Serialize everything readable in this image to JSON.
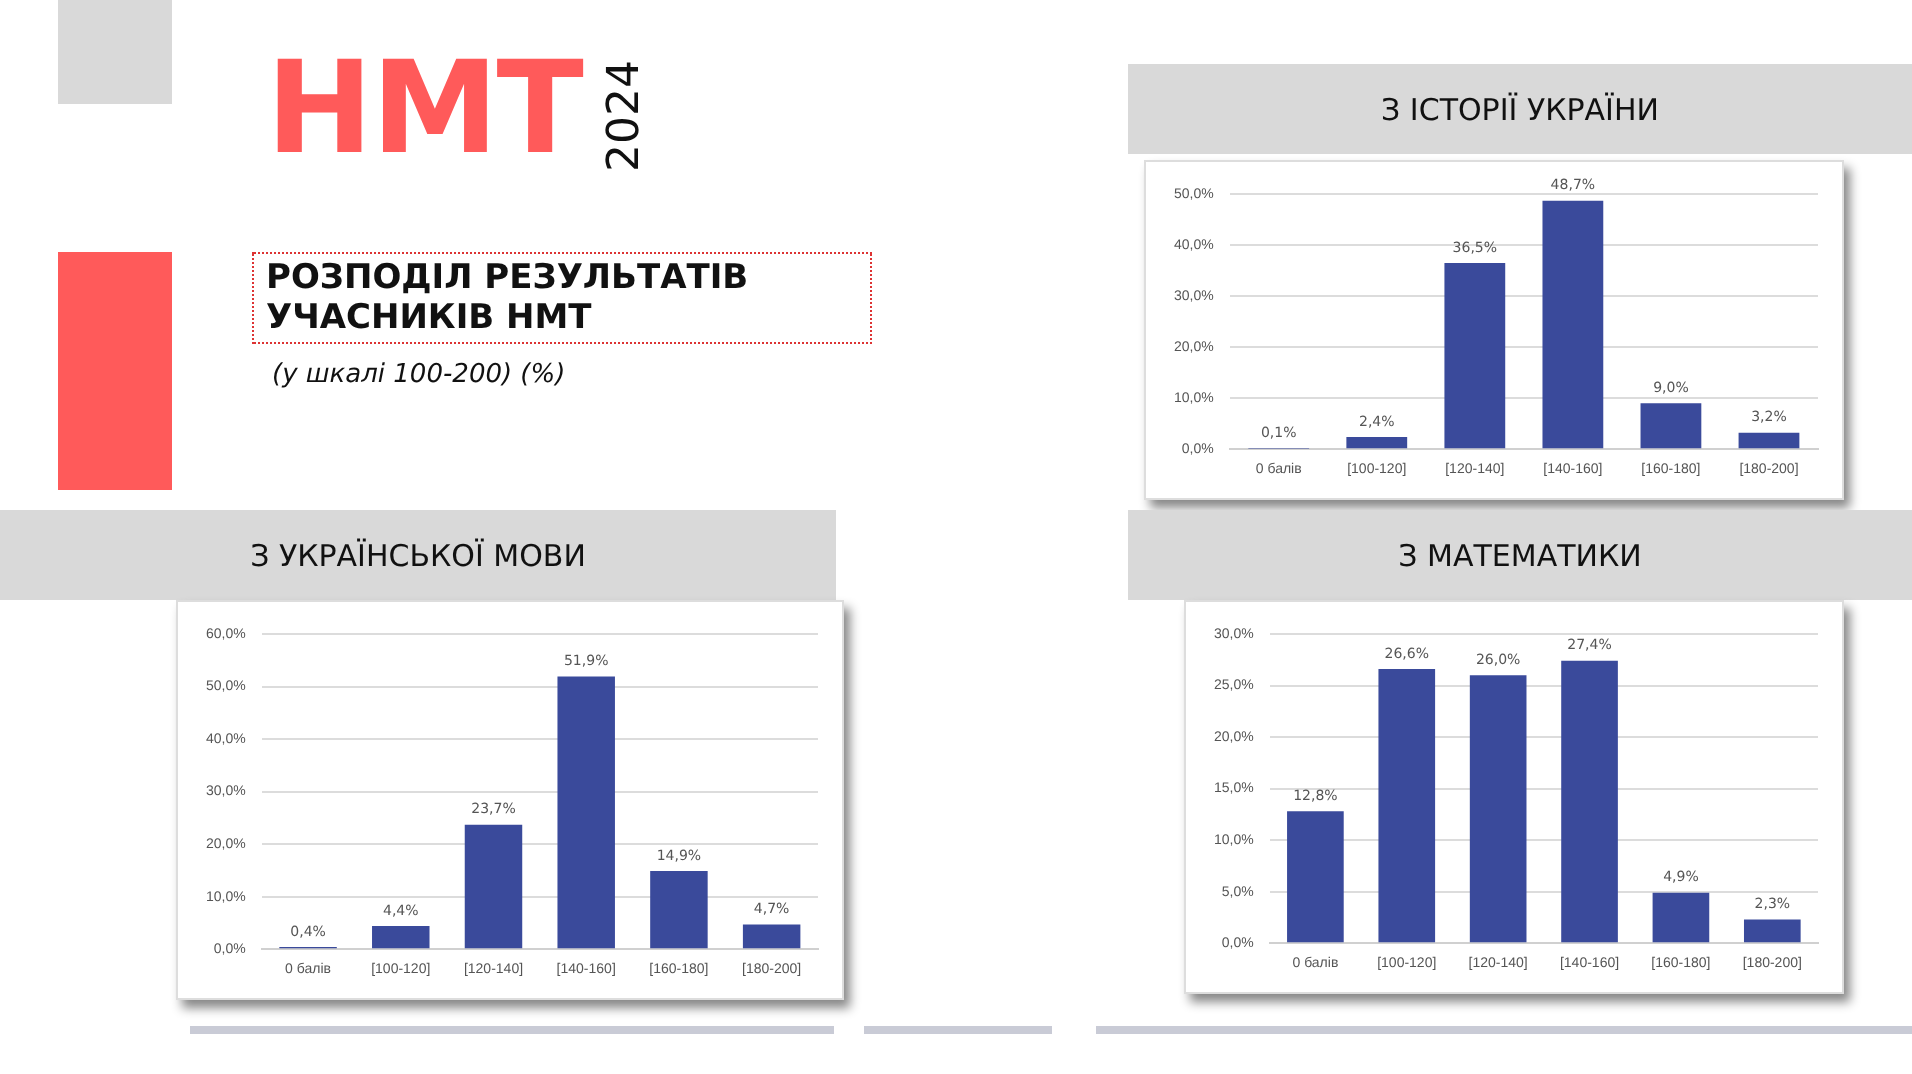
{
  "chart_data": [
    {
      "type": "other",
      "title": "РОЗПОДІЛ РЕЗУЛЬТАТІВ УЧАСНИКІВ НМТ",
      "subtitle": "(у шкалі 100-200) (%)",
      "annotations": [
        "НМТ",
        "2024"
      ]
    },
    {
      "type": "bar",
      "title": "З ІСТОРІЇ УКРАЇНИ",
      "categories": [
        "0 балів",
        "[100-120]",
        "[120-140]",
        "[140-160]",
        "[160-180]",
        "[180-200]"
      ],
      "values": [
        0.1,
        2.4,
        36.5,
        48.7,
        9.0,
        3.2
      ],
      "value_labels": [
        "0,1%",
        "2,4%",
        "36,5%",
        "48,7%",
        "9,0%",
        "3,2%"
      ],
      "color": "#3a4a9b",
      "ylim": [
        0,
        50
      ],
      "yticks": [
        {
          "value": 0,
          "label": "0,0%"
        },
        {
          "value": 10,
          "label": "10,0%"
        },
        {
          "value": 20,
          "label": "20,0%"
        },
        {
          "value": 30,
          "label": "30,0%"
        },
        {
          "value": 40,
          "label": "40,0%"
        },
        {
          "value": 50,
          "label": "50,0%"
        }
      ],
      "grid": "y"
    },
    {
      "type": "bar",
      "title": "З УКРАЇНСЬКОЇ МОВИ",
      "categories": [
        "0 балів",
        "[100-120]",
        "[120-140]",
        "[140-160]",
        "[160-180]",
        "[180-200]"
      ],
      "values": [
        0.4,
        4.4,
        23.7,
        51.9,
        14.9,
        4.7
      ],
      "value_labels": [
        "0,4%",
        "4,4%",
        "23,7%",
        "51,9%",
        "14,9%",
        "4,7%"
      ],
      "color": "#3a4a9b",
      "ylim": [
        0,
        60
      ],
      "yticks": [
        {
          "value": 0,
          "label": "0,0%"
        },
        {
          "value": 10,
          "label": "10,0%"
        },
        {
          "value": 20,
          "label": "20,0%"
        },
        {
          "value": 30,
          "label": "30,0%"
        },
        {
          "value": 40,
          "label": "40,0%"
        },
        {
          "value": 50,
          "label": "50,0%"
        },
        {
          "value": 60,
          "label": "60,0%"
        }
      ],
      "grid": "y"
    },
    {
      "type": "bar",
      "title": "З МАТЕМАТИКИ",
      "categories": [
        "0 балів",
        "[100-120]",
        "[120-140]",
        "[140-160]",
        "[160-180]",
        "[180-200]"
      ],
      "values": [
        12.8,
        26.6,
        26.0,
        27.4,
        4.9,
        2.3
      ],
      "value_labels": [
        "12,8%",
        "26,6%",
        "26,0%",
        "27,4%",
        "4,9%",
        "2,3%"
      ],
      "color": "#3a4a9b",
      "ylim": [
        0,
        30
      ],
      "yticks": [
        {
          "value": 0,
          "label": "0,0%"
        },
        {
          "value": 5,
          "label": "5,0%"
        },
        {
          "value": 10,
          "label": "10,0%"
        },
        {
          "value": 15,
          "label": "15,0%"
        },
        {
          "value": 20,
          "label": "20,0%"
        },
        {
          "value": 25,
          "label": "25,0%"
        },
        {
          "value": 30,
          "label": "30,0%"
        }
      ],
      "grid": "y"
    }
  ]
}
